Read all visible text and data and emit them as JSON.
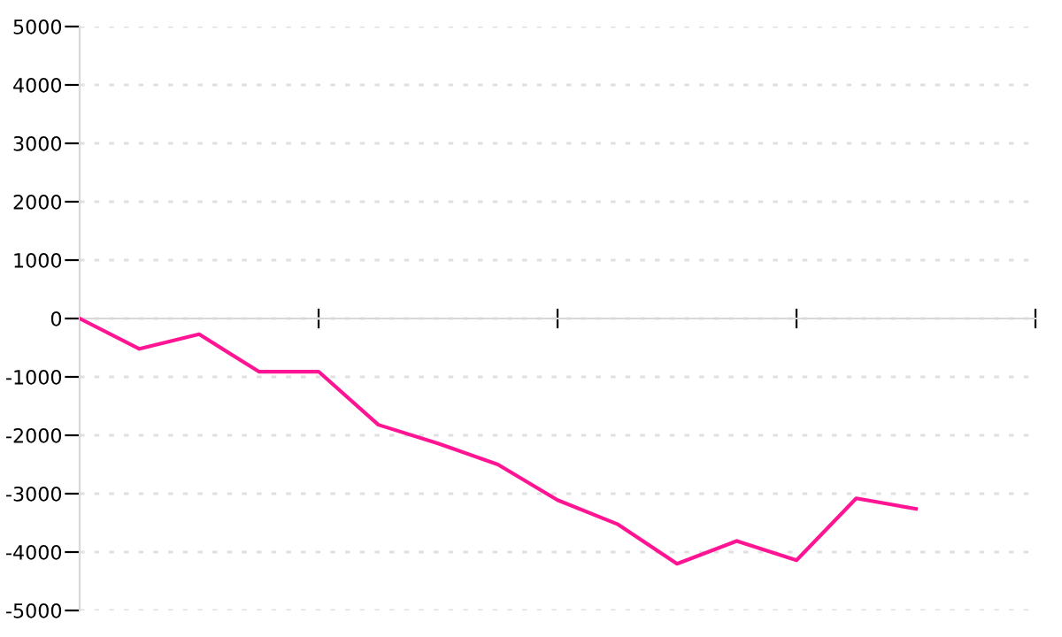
{
  "chart_data": {
    "type": "line",
    "categories": [
      null,
      null,
      null,
      null,
      null,
      null,
      null,
      null,
      null,
      null,
      null,
      null,
      null,
      null,
      null,
      null,
      null
    ],
    "series": [
      {
        "color": "#ff1493",
        "values": [
          0,
          -520,
          -270,
          -910,
          -910,
          -1820,
          -2140,
          -2500,
          -3110,
          -3520,
          -4200,
          -3810,
          -4140,
          -3080,
          -3260,
          null,
          null
        ]
      }
    ],
    "ylim": [
      -5000,
      5000
    ],
    "yticks": [
      -5000,
      -4000,
      -3000,
      -2000,
      -1000,
      0,
      1000,
      2000,
      3000,
      4000,
      5000
    ],
    "tick_labels": "y",
    "grid": "y",
    "marker": "none",
    "line_style": "solid"
  }
}
